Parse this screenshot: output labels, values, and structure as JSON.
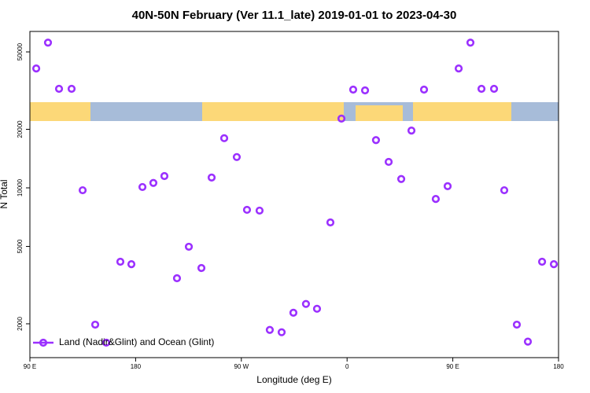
{
  "chart_data": {
    "type": "scatter",
    "title": "40N-50N February (Ver 11.1_late)   2019-01-01 to 2023-04-30",
    "x_label": "Longitude (deg E)",
    "y_label": "N Total",
    "x": [
      95.4,
      105.4,
      114.8,
      125.5,
      134.9,
      145.6,
      155,
      167,
      176.4,
      185.8,
      195.1,
      204.5,
      215.2,
      225.3,
      236,
      244.7,
      255.4,
      266.1,
      274.8,
      285.5,
      294.2,
      304.3,
      314.3,
      325,
      334.4,
      345.8,
      355.2,
      365.2,
      375.3,
      384.6,
      395.4,
      406.1,
      414.8,
      425.5,
      435.5,
      445.6,
      455,
      465,
      474.4,
      485.1,
      493.8,
      504.5,
      513.9,
      526,
      536
    ],
    "series": [
      {
        "name": "Land (Nadir&Glint) and Ocean (Glint)",
        "color": "#9b30ff",
        "values": [
          41100,
          55800,
          32300,
          32300,
          9720,
          1980,
          1600,
          4170,
          4050,
          10100,
          10600,
          11500,
          3430,
          4980,
          3870,
          11300,
          18000,
          14400,
          7710,
          7640,
          1860,
          1810,
          2280,
          2530,
          2390,
          6640,
          22700,
          32000,
          31700,
          17600,
          13600,
          11100,
          19700,
          32000,
          8770,
          10200,
          41100,
          55800,
          32300,
          32300,
          9720,
          1980,
          1620,
          4170,
          4050
        ]
      }
    ],
    "xlim": [
      90,
      540
    ],
    "xticks": [
      {
        "value": 90,
        "label": "90 E"
      },
      180,
      {
        "value": 270,
        "label": "90 W"
      },
      {
        "value": 360,
        "label": "0"
      },
      {
        "value": 450,
        "label": "90 E"
      },
      {
        "value": 540,
        "label": "180"
      }
    ],
    "ylim": [
      1340,
      63700
    ],
    "yticks": [
      2000,
      5000,
      10000,
      20000,
      50000
    ],
    "log_y": true,
    "legend": "bottom-left"
  }
}
